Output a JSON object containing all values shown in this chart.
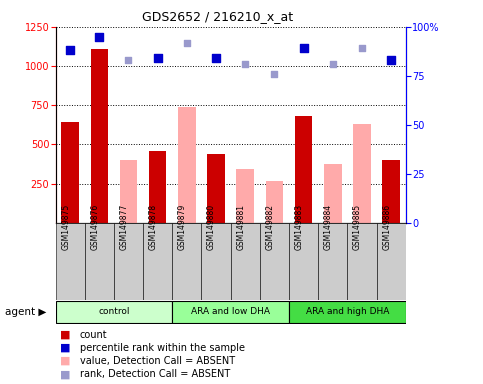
{
  "title": "GDS2652 / 216210_x_at",
  "samples": [
    "GSM149875",
    "GSM149876",
    "GSM149877",
    "GSM149878",
    "GSM149879",
    "GSM149880",
    "GSM149881",
    "GSM149882",
    "GSM149883",
    "GSM149884",
    "GSM149885",
    "GSM149886"
  ],
  "groups": [
    {
      "label": "control",
      "color": "#ccffcc",
      "start": 0,
      "end": 3
    },
    {
      "label": "ARA and low DHA",
      "color": "#99ff99",
      "start": 4,
      "end": 7
    },
    {
      "label": "ARA and high DHA",
      "color": "#44dd44",
      "start": 8,
      "end": 11
    }
  ],
  "count": [
    640,
    1110,
    null,
    460,
    null,
    440,
    null,
    null,
    680,
    null,
    null,
    400
  ],
  "count_absent": [
    null,
    null,
    400,
    null,
    740,
    null,
    345,
    265,
    null,
    375,
    630,
    null
  ],
  "pct_rank": [
    88,
    95,
    null,
    84,
    null,
    84,
    null,
    null,
    89,
    null,
    null,
    83
  ],
  "pct_rank_absent": [
    null,
    null,
    83,
    null,
    92,
    null,
    81,
    76,
    null,
    81,
    89,
    null
  ],
  "ylim_left": [
    0,
    1250
  ],
  "ylim_right": [
    0,
    100
  ],
  "yticks_left": [
    250,
    500,
    750,
    1000,
    1250
  ],
  "yticks_right": [
    0,
    25,
    50,
    75,
    100
  ],
  "bar_color_present": "#cc0000",
  "bar_color_absent": "#ffaaaa",
  "dot_color_present": "#0000cc",
  "dot_color_absent": "#9999cc",
  "agent_label": "agent ▶",
  "legend": [
    {
      "color": "#cc0000",
      "label": "count"
    },
    {
      "color": "#0000cc",
      "label": "percentile rank within the sample"
    },
    {
      "color": "#ffaaaa",
      "label": "value, Detection Call = ABSENT"
    },
    {
      "color": "#9999cc",
      "label": "rank, Detection Call = ABSENT"
    }
  ]
}
